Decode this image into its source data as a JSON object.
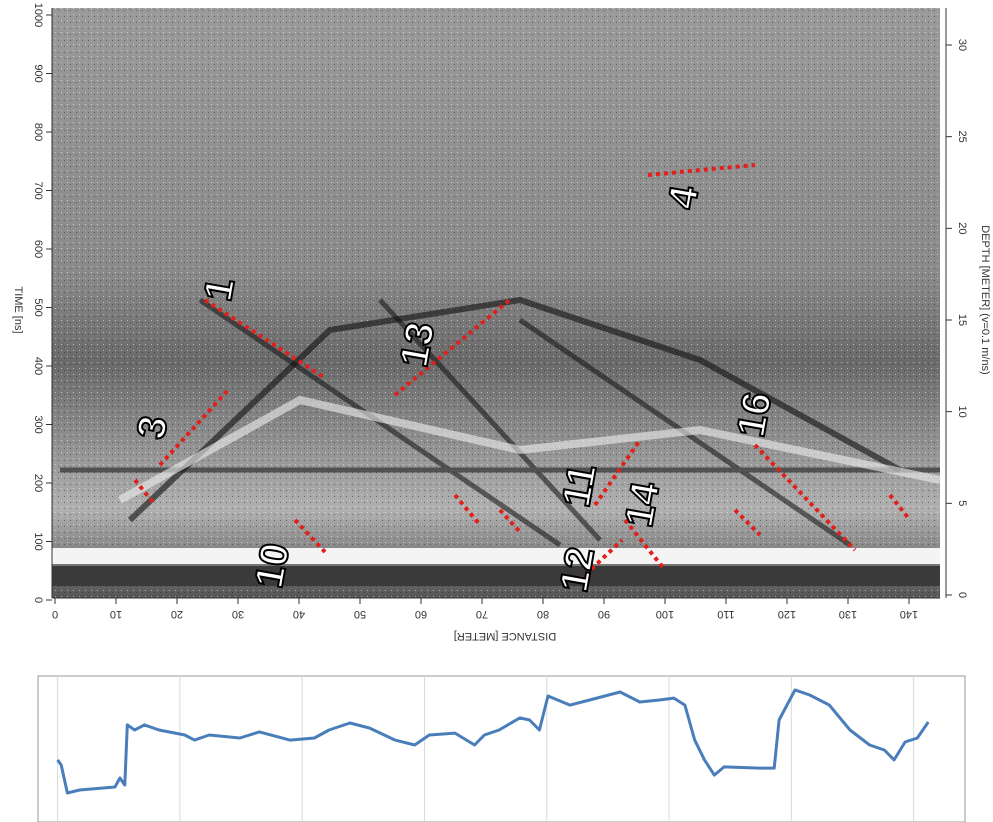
{
  "radargram": {
    "time_axis": {
      "title": "TIME [ns]",
      "ticks": [
        0,
        100,
        200,
        300,
        400,
        500,
        600,
        700,
        800,
        900,
        1000
      ]
    },
    "distance_axis": {
      "title": "DISTANCE [METER]",
      "ticks": [
        0,
        10,
        20,
        30,
        40,
        50,
        60,
        70,
        80,
        90,
        100,
        110,
        120,
        130,
        140
      ]
    },
    "depth_axis": {
      "title": "DEPTH [METER] (v=0.1 m/ns)",
      "ticks": [
        0,
        5,
        10,
        15,
        20,
        25,
        30
      ]
    },
    "annotations": [
      "1",
      "3",
      "4",
      "10",
      "11",
      "12",
      "13",
      "14",
      "16"
    ]
  },
  "chart_data": {
    "type": "line",
    "x": [
      0,
      0.3,
      0.8,
      1.8,
      4.7,
      5.1,
      5.5,
      5.7,
      6.3,
      7.1,
      8.3,
      10.4,
      11.2,
      12.4,
      14.9,
      16.5,
      19.0,
      21.0,
      22.2,
      23.9,
      25.5,
      27.6,
      29.2,
      30.4,
      32.5,
      34.1,
      34.9,
      36.1,
      37.8,
      38.6,
      39.4,
      40.1,
      41.9,
      43.5,
      46.0,
      47.6,
      49.2,
      50.4,
      51.3,
      52.1,
      52.9,
      53.7,
      54.5,
      57.4,
      58.6,
      59.0,
      60.3,
      61.5,
      63.1,
      64.8,
      66.4,
      67.6,
      68.4,
      69.3,
      70.3,
      71.2
    ],
    "series": [
      {
        "color": "#4a7ebb",
        "values": [
          42.9,
          39.3,
          19.3,
          21.4,
          23.6,
          30,
          25,
          67.9,
          64.3,
          67.9,
          64.3,
          60.7,
          57.1,
          60.7,
          58.6,
          62.9,
          57.1,
          58.6,
          64.3,
          69.3,
          65.7,
          57.1,
          53.6,
          60.7,
          62.1,
          53.6,
          60.7,
          64.3,
          72.9,
          71.4,
          64.3,
          88.6,
          82.1,
          85.7,
          91.4,
          84.3,
          85.7,
          87.1,
          82.1,
          57.1,
          42.9,
          32.1,
          37.9,
          37.1,
          37.1,
          71.4,
          92.9,
          89.3,
          82.1,
          64.3,
          53.6,
          50,
          42.9,
          55.7,
          58.6,
          70
        ]
      }
    ],
    "xlim": [
      -1.6,
      74.2
    ],
    "ylim": [
      0,
      100
    ],
    "xgrid": [
      0,
      10,
      20,
      30,
      40,
      50,
      60,
      70
    ]
  }
}
